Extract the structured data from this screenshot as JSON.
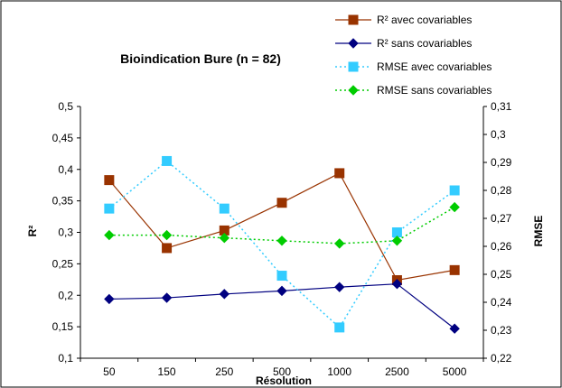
{
  "chart_data": {
    "type": "line",
    "title": "Bioindication Bure (n = 82)",
    "xlabel": "Résolution",
    "ylabel_left": "R²",
    "ylabel_right": "RMSE",
    "categories": [
      "50",
      "150",
      "250",
      "500",
      "1000",
      "2500",
      "5000"
    ],
    "y_left": {
      "min": 0.1,
      "max": 0.5,
      "step": 0.05,
      "ticks": [
        "0,1",
        "0,15",
        "0,2",
        "0,25",
        "0,3",
        "0,35",
        "0,4",
        "0,45",
        "0,5"
      ]
    },
    "y_right": {
      "min": 0.22,
      "max": 0.31,
      "step": 0.01,
      "ticks": [
        "0,22",
        "0,23",
        "0,24",
        "0,25",
        "0,26",
        "0,27",
        "0,28",
        "0,29",
        "0,3",
        "0,31"
      ]
    },
    "grid": false,
    "legend_position": "top-right",
    "series": [
      {
        "name": "R² avec covariables",
        "axis": "left",
        "color": "#993300",
        "marker": "square",
        "dashed": false,
        "values": [
          0.383,
          0.275,
          0.303,
          0.347,
          0.394,
          0.224,
          0.24
        ]
      },
      {
        "name": "R² sans covariables",
        "axis": "left",
        "color": "#000080",
        "marker": "diamond",
        "dashed": false,
        "values": [
          0.194,
          0.196,
          0.202,
          0.207,
          0.213,
          0.218,
          0.147
        ]
      },
      {
        "name": "RMSE avec covariables",
        "axis": "right",
        "color": "#33CCFF",
        "marker": "square",
        "dashed": true,
        "values": [
          0.2735,
          0.2905,
          0.2735,
          0.2495,
          0.231,
          0.265,
          0.28
        ]
      },
      {
        "name": "RMSE sans covariables",
        "axis": "right",
        "color": "#00CC00",
        "marker": "diamond",
        "dashed": true,
        "values": [
          0.264,
          0.264,
          0.263,
          0.262,
          0.261,
          0.262,
          0.274
        ]
      }
    ]
  }
}
